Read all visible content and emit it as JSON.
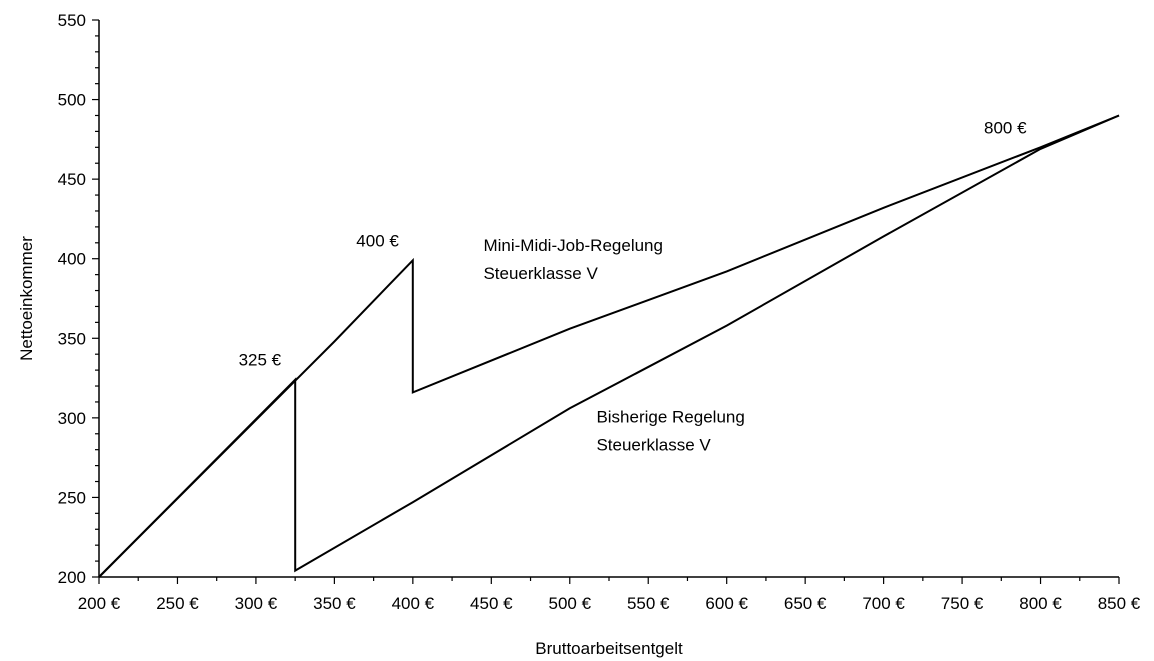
{
  "chart_data": {
    "type": "line",
    "title": "",
    "xlabel": "Bruttoarbeitsentgelt",
    "ylabel": "Nettoeinkommer",
    "xlim": [
      200,
      850
    ],
    "ylim": [
      200,
      550
    ],
    "x_ticks": [
      200,
      250,
      300,
      350,
      400,
      450,
      500,
      550,
      600,
      650,
      700,
      750,
      800,
      850
    ],
    "x_tick_labels": [
      "200 €",
      "250 €",
      "300 €",
      "350 €",
      "400 €",
      "450 €",
      "500 €",
      "550 €",
      "600 €",
      "650 €",
      "700 €",
      "750 €",
      "800 €",
      "850 €"
    ],
    "y_ticks": [
      200,
      250,
      300,
      350,
      400,
      450,
      500,
      550
    ],
    "y_tick_labels": [
      "200",
      "250",
      "300",
      "350",
      "400",
      "450",
      "500",
      "550"
    ],
    "grid": false,
    "legend": "none",
    "series": [
      {
        "points": [
          [
            200,
            200
          ],
          [
            325,
            324
          ],
          [
            325,
            204
          ],
          [
            400,
            247
          ],
          [
            500,
            306
          ],
          [
            600,
            358
          ],
          [
            700,
            414
          ],
          [
            800,
            469
          ],
          [
            850,
            490
          ]
        ]
      },
      {
        "points": [
          [
            200,
            200
          ],
          [
            350,
            348
          ],
          [
            400,
            399
          ],
          [
            400,
            316
          ],
          [
            500,
            356
          ],
          [
            600,
            392
          ],
          [
            700,
            432
          ],
          [
            800,
            470
          ],
          [
            850,
            490
          ]
        ]
      }
    ],
    "annotations": [
      {
        "id": "a325",
        "lines": [
          "325 €"
        ],
        "x": 325,
        "y": 324,
        "anchor": "end"
      },
      {
        "id": "a400",
        "lines": [
          "400 €"
        ],
        "x": 400,
        "y": 399,
        "anchor": "end"
      },
      {
        "id": "a800",
        "lines": [
          "800 €"
        ],
        "x": 800,
        "y": 470,
        "anchor": "end"
      },
      {
        "id": "amini",
        "lines": [
          "Mini-Midi-Job-Regelung",
          "Steuerklasse V"
        ],
        "x": 445,
        "y": 405,
        "anchor": "start"
      },
      {
        "id": "abish",
        "lines": [
          "Bisherige Regelung",
          "Steuerklasse V"
        ],
        "x": 517,
        "y": 297,
        "anchor": "start"
      }
    ]
  }
}
